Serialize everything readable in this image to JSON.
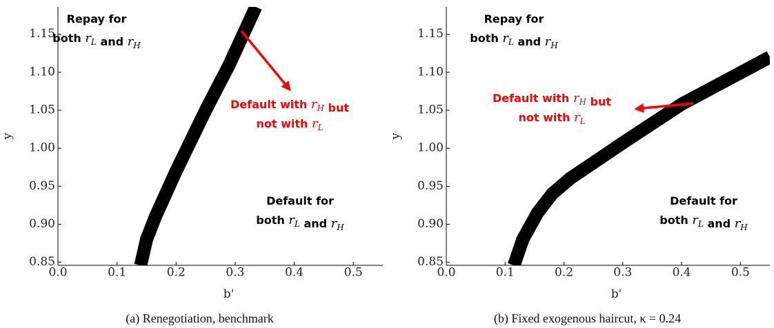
{
  "chart_data": [
    {
      "type": "line",
      "caption": "(a) Renegotiation, benchmark",
      "xlabel": "b'",
      "ylabel": "y",
      "xlim": [
        0,
        0.55
      ],
      "ylim": [
        0.846,
        1.186
      ],
      "xticks": [
        {
          "value": 0,
          "label": "0.0"
        },
        0.1,
        0.2,
        0.3,
        0.4,
        0.5
      ],
      "yticks": [
        0.85,
        {
          "value": 0.9,
          "label": "0.90"
        },
        0.95,
        {
          "value": 1,
          "label": "1.00"
        },
        1.05,
        {
          "value": 1.1,
          "label": "1.10"
        },
        1.15
      ],
      "x": [
        0.14,
        0.15,
        0.165,
        0.2,
        0.25,
        0.29,
        0.335
      ],
      "series": [
        {
          "color": "#000000",
          "values": [
            0.846,
            0.88,
            0.91,
            0.97,
            1.05,
            1.11,
            1.186
          ]
        }
      ],
      "annotations": [
        {
          "color": "#000000",
          "lines": [
            [
              "Repay for"
            ],
            [
              "both ",
              {
                "var": "r",
                "sub": "L"
              },
              " and ",
              {
                "var": "r",
                "sub": "H"
              }
            ]
          ]
        },
        {
          "color": "#ff0000",
          "lines": [
            [
              "Default with ",
              {
                "var": "r",
                "sub": "H"
              },
              " but"
            ],
            [
              "not with ",
              {
                "var": "r",
                "sub": "L"
              }
            ]
          ]
        },
        {
          "color": "#000000",
          "lines": [
            [
              "Default for"
            ],
            [
              "both ",
              {
                "var": "r",
                "sub": "L"
              },
              " and ",
              {
                "var": "r",
                "sub": "H"
              }
            ]
          ]
        }
      ]
    },
    {
      "type": "line",
      "caption": "(b) Fixed exogenous haircut, κ = 0.24",
      "xlabel": "b'",
      "ylabel": "y",
      "xlim": [
        0,
        0.55
      ],
      "ylim": [
        0.846,
        1.186
      ],
      "xticks": [
        {
          "value": 0,
          "label": "0.0"
        },
        0.1,
        0.2,
        0.3,
        0.4,
        0.5
      ],
      "yticks": [
        0.85,
        {
          "value": 0.9,
          "label": "0.90"
        },
        0.95,
        {
          "value": 1,
          "label": "1.00"
        },
        1.05,
        {
          "value": 1.1,
          "label": "1.10"
        },
        1.15
      ],
      "x": [
        0.115,
        0.13,
        0.155,
        0.18,
        0.21,
        0.3,
        0.4,
        0.55
      ],
      "series": [
        {
          "color": "#000000",
          "values": [
            0.846,
            0.88,
            0.915,
            0.94,
            0.96,
            1.007,
            1.058,
            1.12
          ]
        }
      ],
      "annotations": [
        {
          "color": "#000000",
          "lines": [
            [
              "Repay for"
            ],
            [
              "both ",
              {
                "var": "r",
                "sub": "L"
              },
              " and ",
              {
                "var": "r",
                "sub": "H"
              }
            ]
          ]
        },
        {
          "color": "#ff0000",
          "lines": [
            [
              "Default with ",
              {
                "var": "r",
                "sub": "H"
              },
              " but"
            ],
            [
              "not with ",
              {
                "var": "r",
                "sub": "L"
              }
            ]
          ]
        },
        {
          "color": "#000000",
          "lines": [
            [
              "Default for"
            ],
            [
              "both ",
              {
                "var": "r",
                "sub": "L"
              },
              " and ",
              {
                "var": "r",
                "sub": "H"
              }
            ]
          ]
        }
      ]
    }
  ]
}
